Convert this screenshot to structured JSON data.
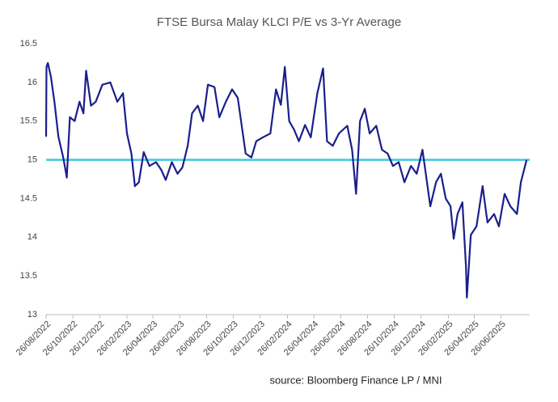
{
  "chart_data": {
    "type": "line",
    "title": "FTSE Bursa Malay KLCI P/E vs 3-Yr Average",
    "source": "source: Bloomberg Finance LP / MNI",
    "x": [
      "26/08/2022",
      "27/08/2022",
      "30/08/2022",
      "06/09/2022",
      "14/09/2022",
      "23/09/2022",
      "04/10/2022",
      "12/10/2022",
      "19/10/2022",
      "30/10/2022",
      "10/11/2022",
      "19/11/2022",
      "25/11/2022",
      "06/12/2022",
      "17/12/2022",
      "01/01/2023",
      "19/01/2023",
      "04/02/2023",
      "17/02/2023",
      "26/02/2023",
      "08/03/2023",
      "16/03/2023",
      "25/03/2023",
      "05/04/2023",
      "18/04/2023",
      "03/05/2023",
      "15/05/2023",
      "25/05/2023",
      "08/06/2023",
      "21/06/2023",
      "02/07/2023",
      "14/07/2023",
      "24/07/2023",
      "06/08/2023",
      "18/08/2023",
      "29/08/2023",
      "13/09/2023",
      "24/09/2023",
      "09/10/2023",
      "23/10/2023",
      "05/11/2023",
      "14/11/2023",
      "23/11/2023",
      "06/12/2023",
      "17/12/2023",
      "01/01/2024",
      "18/01/2024",
      "31/01/2024",
      "11/02/2024",
      "20/02/2024",
      "01/03/2024",
      "12/03/2024",
      "23/03/2024",
      "06/04/2024",
      "19/04/2024",
      "04/05/2024",
      "17/05/2024",
      "26/05/2024",
      "08/06/2024",
      "22/06/2024",
      "11/07/2024",
      "22/07/2024",
      "31/07/2024",
      "09/08/2024",
      "20/08/2024",
      "31/08/2024",
      "15/09/2024",
      "28/09/2024",
      "11/10/2024",
      "23/10/2024",
      "05/11/2024",
      "18/11/2024",
      "03/12/2024",
      "16/12/2024",
      "29/12/2024",
      "07/01/2025",
      "16/01/2025",
      "29/01/2025",
      "09/02/2025",
      "20/02/2025",
      "03/03/2025",
      "10/03/2025",
      "19/03/2025",
      "30/03/2025",
      "07/04/2025",
      "09/04/2025",
      "18/04/2025",
      "01/05/2025",
      "15/05/2025",
      "26/05/2025",
      "10/06/2025",
      "21/06/2025",
      "04/07/2025",
      "17/07/2025",
      "01/08/2025",
      "10/08/2025",
      "23/08/2025"
    ],
    "series": [
      {
        "color": "#1a1f8c",
        "values": [
          15.3,
          16.2,
          16.25,
          16.07,
          15.75,
          15.3,
          15.03,
          14.77,
          15.55,
          15.5,
          15.75,
          15.6,
          16.15,
          15.7,
          15.75,
          15.97,
          16.0,
          15.75,
          15.86,
          15.34,
          15.08,
          14.66,
          14.71,
          15.1,
          14.92,
          14.97,
          14.87,
          14.74,
          14.97,
          14.82,
          14.9,
          15.18,
          15.6,
          15.7,
          15.5,
          15.97,
          15.94,
          15.55,
          15.75,
          15.91,
          15.8,
          15.44,
          15.08,
          15.03,
          15.24,
          15.29,
          15.34,
          15.91,
          15.71,
          16.2,
          15.5,
          15.39,
          15.24,
          15.45,
          15.29,
          15.86,
          16.18,
          15.24,
          15.18,
          15.34,
          15.44,
          15.13,
          14.56,
          15.5,
          15.66,
          15.34,
          15.44,
          15.13,
          15.08,
          14.92,
          14.97,
          14.71,
          14.92,
          14.82,
          15.13,
          14.77,
          14.4,
          14.71,
          14.82,
          14.5,
          14.4,
          13.98,
          14.3,
          14.45,
          13.62,
          13.22,
          14.03,
          14.14,
          14.66,
          14.19,
          14.3,
          14.14,
          14.56,
          14.4,
          14.3,
          14.71,
          15.0
        ]
      }
    ],
    "reference_lines": [
      {
        "value": 15,
        "color": "#3cc8e0"
      }
    ],
    "xlim": [
      "26/08/2022",
      "30/08/2025"
    ],
    "xticks": [
      "26/08/2022",
      "26/10/2022",
      "26/12/2022",
      "26/02/2023",
      "26/04/2023",
      "26/06/2023",
      "26/08/2023",
      "26/10/2023",
      "26/12/2023",
      "26/02/2024",
      "26/04/2024",
      "26/06/2024",
      "26/08/2024",
      "26/10/2024",
      "26/12/2024",
      "26/02/2025",
      "26/04/2025",
      "26/06/2025"
    ],
    "ylim": [
      13,
      16.5
    ],
    "yticks": [
      13,
      13.5,
      14,
      14.5,
      15,
      15.5,
      16,
      16.5
    ]
  }
}
